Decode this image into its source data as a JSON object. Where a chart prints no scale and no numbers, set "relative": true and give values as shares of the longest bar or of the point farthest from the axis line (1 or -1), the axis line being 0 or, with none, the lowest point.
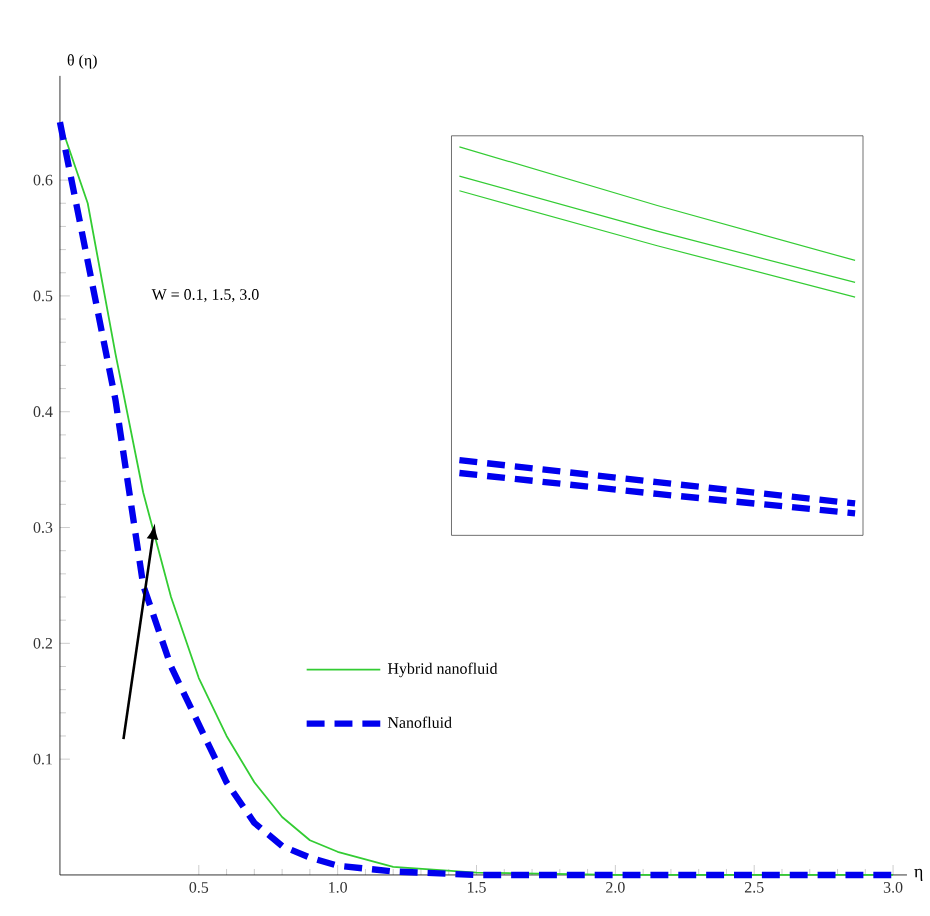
{
  "chart_data": [
    {
      "type": "line",
      "xlabel": "η",
      "ylabel": "θ (η)",
      "x": [
        0,
        0.1,
        0.2,
        0.3,
        0.4,
        0.5,
        0.6,
        0.7,
        0.8,
        0.9,
        1.0,
        1.2,
        1.5,
        2.0,
        2.5,
        3.0
      ],
      "series": [
        {
          "name": "Hybrid nanofluid",
          "color": "#33cc33",
          "line_style": "solid",
          "values": [
            0.65,
            0.58,
            0.45,
            0.33,
            0.24,
            0.17,
            0.12,
            0.08,
            0.05,
            0.03,
            0.02,
            0.007,
            0.002,
            0,
            0,
            0
          ]
        },
        {
          "name": "Nanofluid",
          "color": "#0000ee",
          "line_style": "dashed",
          "values": [
            0.65,
            0.53,
            0.41,
            0.25,
            0.18,
            0.13,
            0.08,
            0.045,
            0.025,
            0.015,
            0.008,
            0.003,
            0,
            0,
            0,
            0
          ]
        }
      ],
      "xlim": [
        0,
        3.05
      ],
      "ylim": [
        0,
        0.69
      ],
      "xticks": [
        0.5,
        {
          "value": 1,
          "label": "1.0"
        },
        1.5,
        {
          "value": 2,
          "label": "2.0"
        },
        2.5,
        {
          "value": 3,
          "label": "3.0"
        }
      ],
      "yticks": [
        0.1,
        0.2,
        0.3,
        0.4,
        0.5,
        0.6
      ],
      "marker": "none",
      "legend": "bottom",
      "annotations": [
        "W = 0.1, 1.5, 3.0"
      ]
    },
    {
      "type": "line",
      "relative": true,
      "categories": [
        null,
        null,
        null
      ],
      "series": [
        {
          "color": "#33cc33",
          "line_style": "solid",
          "values": [
            1,
            0.84,
            0.69
          ]
        },
        {
          "color": "#33cc33",
          "line_style": "solid",
          "values": [
            0.92,
            0.77,
            0.63
          ]
        },
        {
          "color": "#33cc33",
          "line_style": "solid",
          "values": [
            0.88,
            0.73,
            0.59
          ]
        },
        {
          "color": "#0000ee",
          "line_style": "dashed",
          "values": [
            0.145,
            0.085,
            0.027
          ]
        },
        {
          "color": "#0000ee",
          "line_style": "dashed",
          "values": [
            0.11,
            0.053,
            0
          ]
        }
      ]
    }
  ]
}
